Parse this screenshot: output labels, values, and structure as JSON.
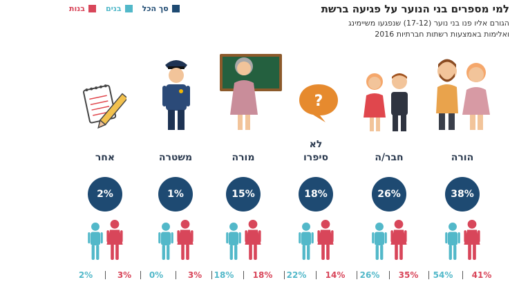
{
  "header": {
    "title": "למי מספרים בני הנוער על פגיעה ברשת",
    "subtitle_line1": "הגורם אליו פנו בני נוער (17-12) שנפגעו משיימינג",
    "subtitle_line2": "ואלימות באמצעות רשתות חברתיות 2016"
  },
  "legend": [
    {
      "label": "סך הכל",
      "color": "#1e4a72"
    },
    {
      "label": "בנים",
      "color": "#52b8c9"
    },
    {
      "label": "בנות",
      "color": "#d8465a"
    }
  ],
  "colors": {
    "total": "#1e4a72",
    "boys": "#52b8c9",
    "girls": "#d8465a"
  },
  "chart_data": {
    "type": "bar",
    "categories": [
      "הורה",
      "חבר/ה",
      "לא סיפרו",
      "מורה",
      "משטרה",
      "אחר"
    ],
    "category_lines": [
      [
        "הורה"
      ],
      [
        "חבר/ה"
      ],
      [
        "לא",
        "סיפרו"
      ],
      [
        "מורה"
      ],
      [
        "משטרה"
      ],
      [
        "אחר"
      ]
    ],
    "icons": [
      "parents-icon",
      "friends-icon",
      "speech-bubble-question-icon",
      "teacher-icon",
      "police-officer-icon",
      "notepad-pencil-icon"
    ],
    "series": [
      {
        "name": "סך הכל",
        "values": [
          38,
          26,
          18,
          15,
          1,
          2
        ]
      },
      {
        "name": "בנים",
        "values": [
          54,
          26,
          22,
          18,
          0,
          2
        ]
      },
      {
        "name": "בנות",
        "values": [
          41,
          35,
          14,
          18,
          3,
          3
        ]
      }
    ],
    "unit": "%"
  }
}
